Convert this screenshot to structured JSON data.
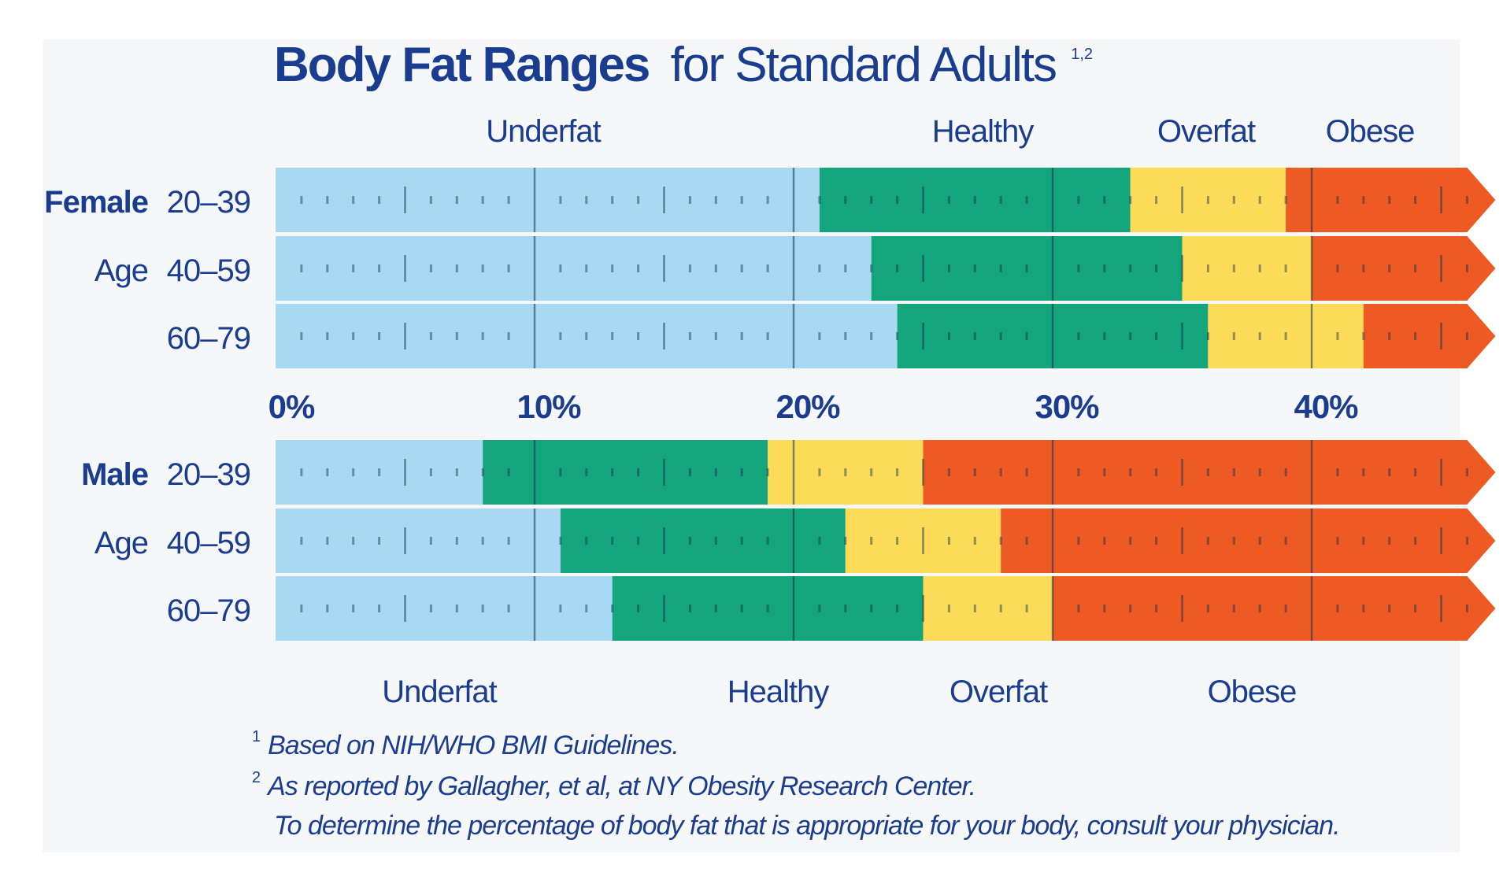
{
  "chart_data": {
    "type": "bar",
    "subtype": "stacked-horizontal-range",
    "title_bold": "Body Fat Ranges",
    "title_rest": "for Standard Adults",
    "title_sup": "1,2",
    "x_ticks": [
      "0%",
      "10%",
      "20%",
      "30%",
      "40%"
    ],
    "xlim": [
      0,
      46
    ],
    "colors": {
      "Underfat": "#a9d8f3",
      "Healthy": "#14a57c",
      "Overfat": "#fcdb58",
      "Obese": "#ee5a24"
    },
    "female": {
      "group_label": "Female",
      "category_labels_top": [
        "Underfat",
        "Healthy",
        "Overfat",
        "Obese"
      ],
      "rows": [
        {
          "prefix": "Female",
          "age": "20–39",
          "underfat": [
            0,
            21
          ],
          "healthy": [
            21,
            33
          ],
          "overfat": [
            33,
            39
          ],
          "obese": [
            39,
            46
          ]
        },
        {
          "prefix": "Age",
          "age": "40–59",
          "underfat": [
            0,
            23
          ],
          "healthy": [
            23,
            35
          ],
          "overfat": [
            35,
            40
          ],
          "obese": [
            40,
            46
          ]
        },
        {
          "prefix": "",
          "age": "60–79",
          "underfat": [
            0,
            24
          ],
          "healthy": [
            24,
            36
          ],
          "overfat": [
            36,
            42
          ],
          "obese": [
            42,
            46
          ]
        }
      ]
    },
    "male": {
      "group_label": "Male",
      "category_labels_bottom": [
        "Underfat",
        "Healthy",
        "Overfat",
        "Obese"
      ],
      "rows": [
        {
          "prefix": "Male",
          "age": "20–39",
          "underfat": [
            0,
            8
          ],
          "healthy": [
            8,
            19
          ],
          "overfat": [
            19,
            25
          ],
          "obese": [
            25,
            46
          ]
        },
        {
          "prefix": "Age",
          "age": "40–59",
          "underfat": [
            0,
            11
          ],
          "healthy": [
            11,
            22
          ],
          "overfat": [
            22,
            28
          ],
          "obese": [
            28,
            46
          ]
        },
        {
          "prefix": "",
          "age": "60–79",
          "underfat": [
            0,
            13
          ],
          "healthy": [
            13,
            25
          ],
          "overfat": [
            25,
            30
          ],
          "obese": [
            30,
            46
          ]
        }
      ]
    },
    "footnotes": [
      {
        "mark": "1",
        "text": "Based on NIH/WHO BMI Guidelines."
      },
      {
        "mark": "2",
        "text": "As reported by Gallagher, et al, at NY Obesity Research Center."
      },
      {
        "mark": "",
        "text": "To determine the percentage of body fat that is appropriate for your body, consult your physician."
      }
    ]
  }
}
